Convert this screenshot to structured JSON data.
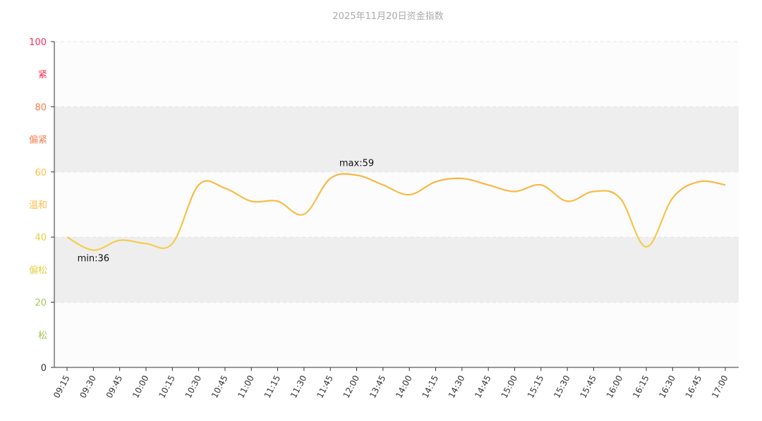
{
  "chart_data": {
    "type": "line",
    "title": "2025年11月20日资金指数",
    "x": [
      "09:15",
      "09:30",
      "09:45",
      "10:00",
      "10:15",
      "10:30",
      "10:45",
      "11:00",
      "11:15",
      "11:30",
      "11:45",
      "12:00",
      "13:45",
      "14:00",
      "14:15",
      "14:30",
      "14:45",
      "15:00",
      "15:15",
      "15:30",
      "15:45",
      "16:00",
      "16:15",
      "16:30",
      "16:45",
      "17:00"
    ],
    "values": [
      40,
      36,
      39,
      38,
      38,
      56,
      55,
      51,
      51,
      47,
      58,
      59,
      56,
      53,
      57,
      58,
      56,
      54,
      56,
      51,
      54,
      52,
      37,
      52,
      57,
      56
    ],
    "ylim": [
      0,
      100
    ],
    "yticks": [
      0,
      20,
      40,
      60,
      80,
      100
    ],
    "bands": [
      {
        "label": "松",
        "from": 0,
        "to": 20,
        "color": "#a0c850"
      },
      {
        "label": "偏松",
        "from": 20,
        "to": 40,
        "color": "#e8cf45"
      },
      {
        "label": "温和",
        "from": 40,
        "to": 60,
        "color": "#ffbe48"
      },
      {
        "label": "偏紧",
        "from": 60,
        "to": 80,
        "color": "#f5804f"
      },
      {
        "label": "紧",
        "from": 80,
        "to": 100,
        "color": "#ff2d55"
      }
    ],
    "tick_colors": {
      "0": "#333333",
      "20": "#a0c850",
      "40": "#e8cf45",
      "60": "#ffbe48",
      "80": "#f5804f",
      "100": "#ff2d55"
    },
    "annotations": {
      "max": "max:59",
      "min": "min:36"
    },
    "line_colors": {
      "high": "#fdb243",
      "low": "#f3cf4c"
    },
    "grid": true
  }
}
